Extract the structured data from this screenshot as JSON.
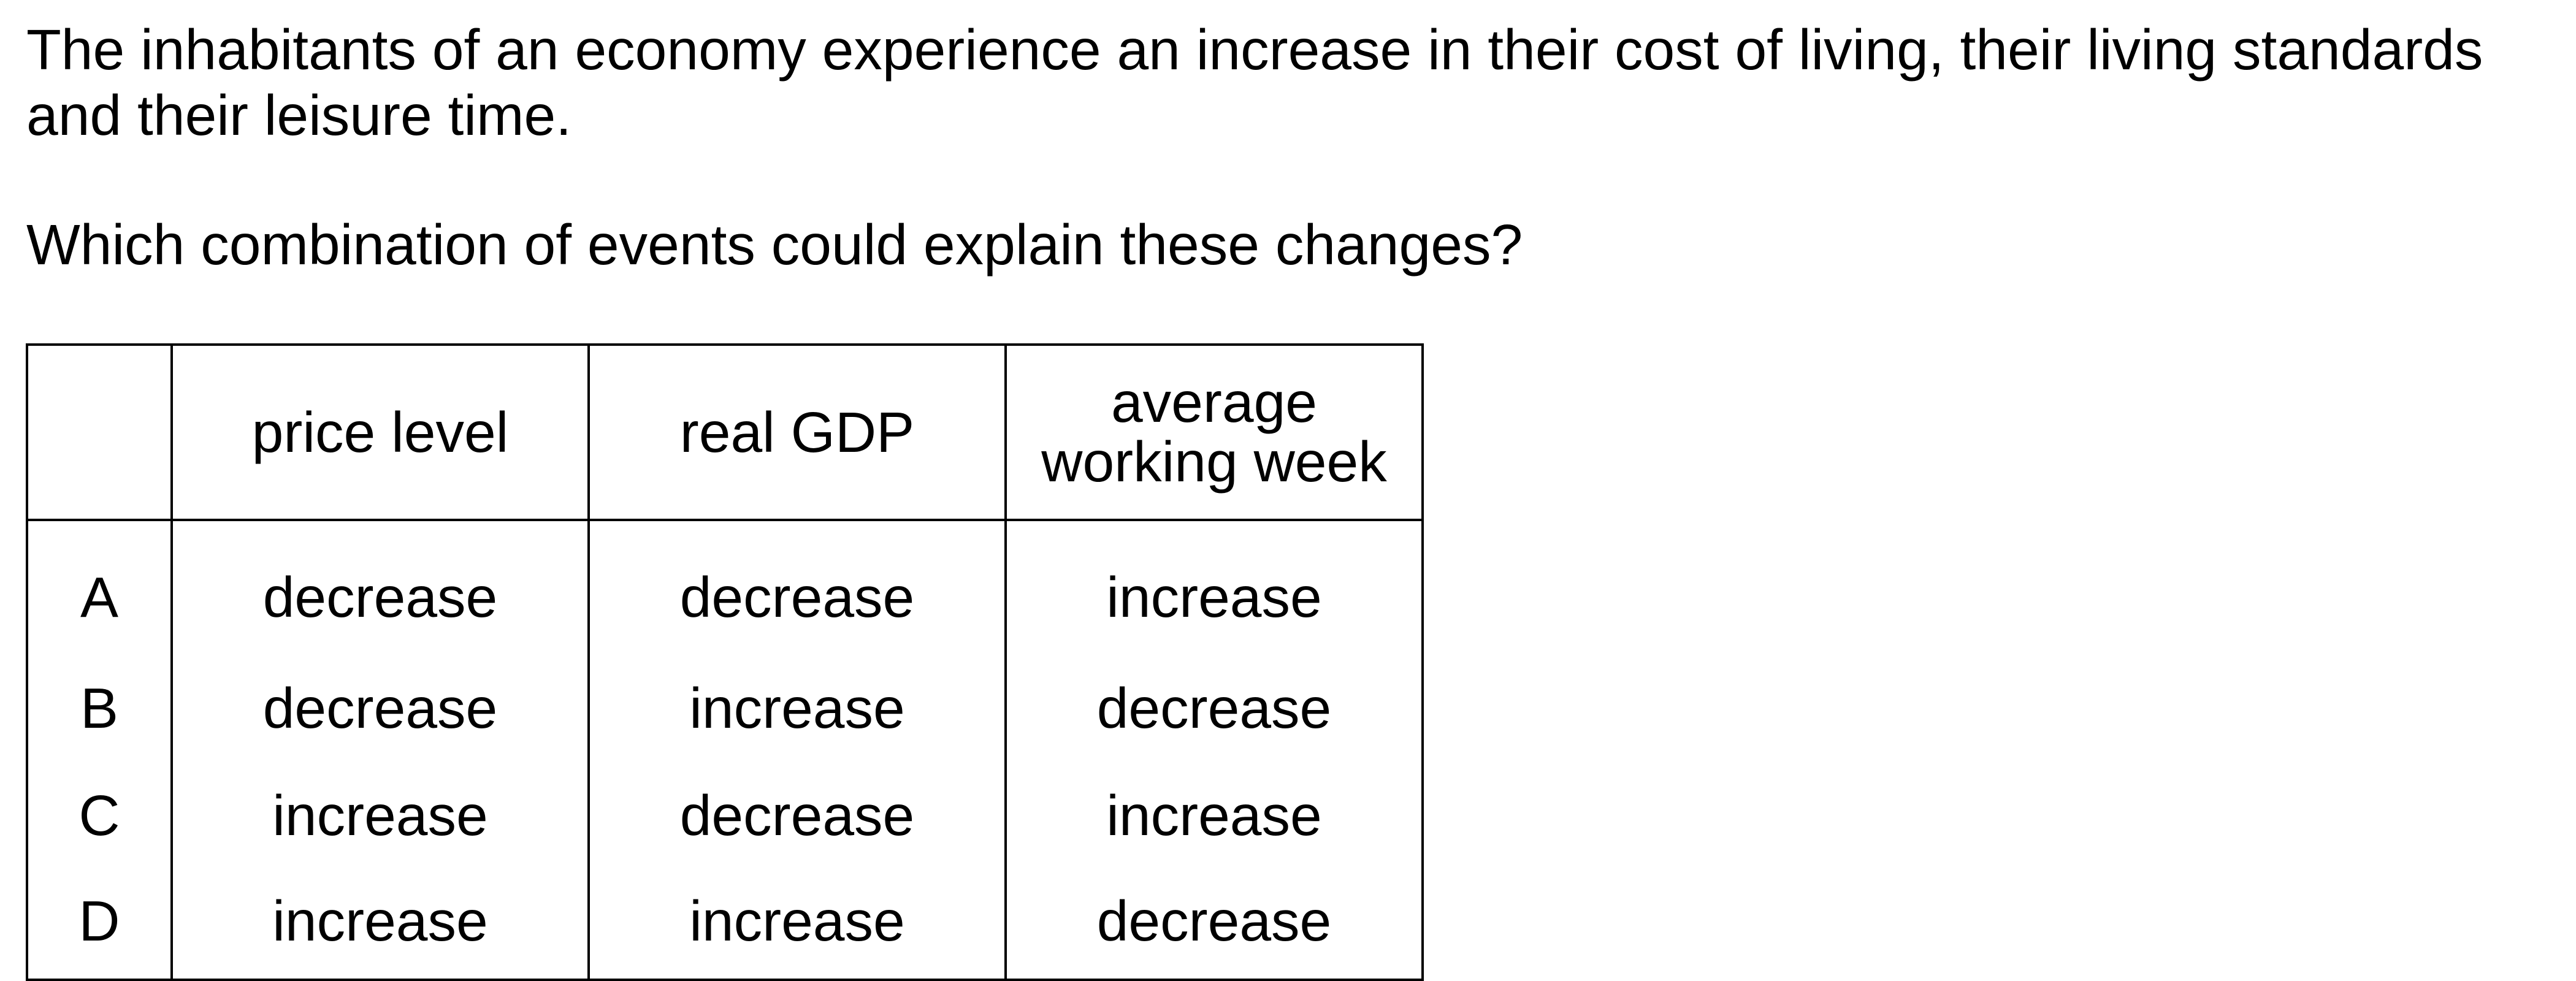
{
  "stem": {
    "line1": "The inhabitants of an economy experience an increase in their cost of living, their living standards",
    "line2": "and their leisure time."
  },
  "question": "Which combination of events could explain these changes?",
  "table": {
    "headers": {
      "blank": "",
      "price_level": "price level",
      "real_gdp": "real GDP",
      "avg_week_line1": "average",
      "avg_week_line2": "working week"
    },
    "rows": [
      {
        "letter": "A",
        "price_level": "decrease",
        "real_gdp": "decrease",
        "working_week": "increase"
      },
      {
        "letter": "B",
        "price_level": "decrease",
        "real_gdp": "increase",
        "working_week": "decrease"
      },
      {
        "letter": "C",
        "price_level": "increase",
        "real_gdp": "decrease",
        "working_week": "increase"
      },
      {
        "letter": "D",
        "price_level": "increase",
        "real_gdp": "increase",
        "working_week": "decrease"
      }
    ]
  }
}
